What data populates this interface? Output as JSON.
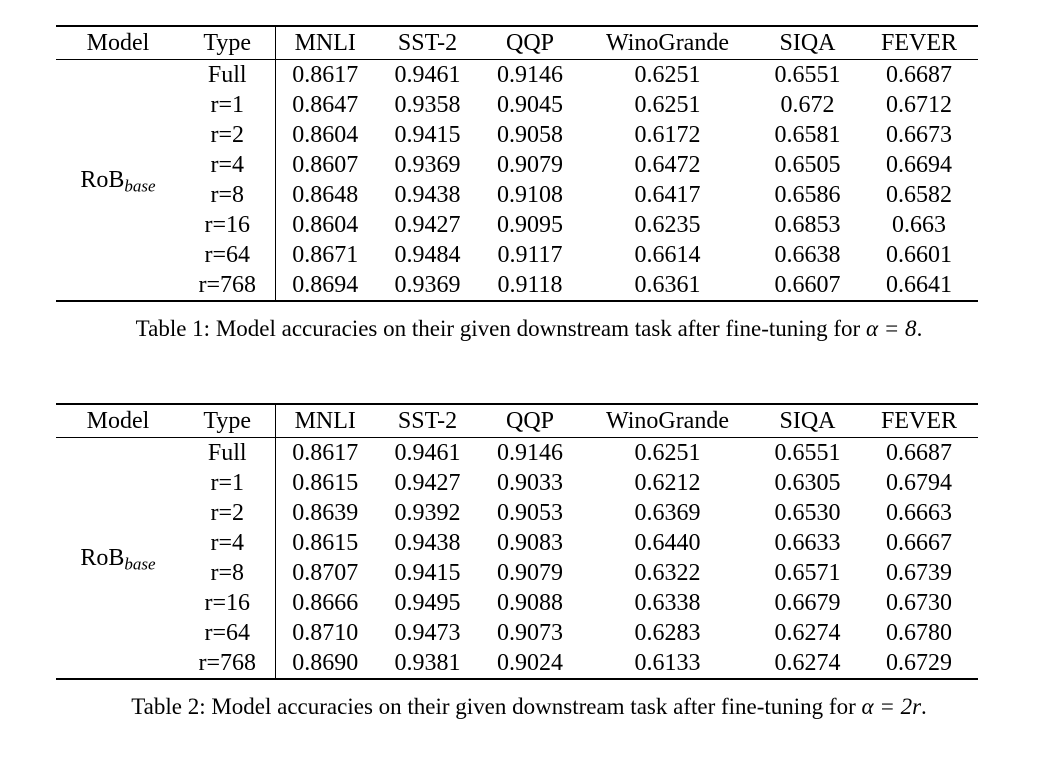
{
  "page": {
    "background_color": "#ffffff",
    "text_color": "#000000"
  },
  "tables": [
    {
      "columns": [
        "Model",
        "Type",
        "MNLI",
        "SST-2",
        "QQP",
        "WinoGrande",
        "SIQA",
        "FEVER"
      ],
      "model": {
        "main": "RoB",
        "sub": "base"
      },
      "rows": [
        {
          "type": "Full",
          "values": [
            "0.8617",
            "0.9461",
            "0.9146",
            "0.6251",
            "0.6551",
            "0.6687"
          ]
        },
        {
          "type": "r=1",
          "values": [
            "0.8647",
            "0.9358",
            "0.9045",
            "0.6251",
            "0.672",
            "0.6712"
          ]
        },
        {
          "type": "r=2",
          "values": [
            "0.8604",
            "0.9415",
            "0.9058",
            "0.6172",
            "0.6581",
            "0.6673"
          ]
        },
        {
          "type": "r=4",
          "values": [
            "0.8607",
            "0.9369",
            "0.9079",
            "0.6472",
            "0.6505",
            "0.6694"
          ]
        },
        {
          "type": "r=8",
          "values": [
            "0.8648",
            "0.9438",
            "0.9108",
            "0.6417",
            "0.6586",
            "0.6582"
          ]
        },
        {
          "type": "r=16",
          "values": [
            "0.8604",
            "0.9427",
            "0.9095",
            "0.6235",
            "0.6853",
            "0.663"
          ]
        },
        {
          "type": "r=64",
          "values": [
            "0.8671",
            "0.9484",
            "0.9117",
            "0.6614",
            "0.6638",
            "0.6601"
          ]
        },
        {
          "type": "r=768",
          "values": [
            "0.8694",
            "0.9369",
            "0.9118",
            "0.6361",
            "0.6607",
            "0.6641"
          ]
        }
      ],
      "caption": {
        "label": "Table 1:",
        "body": " Model accuracies on their given downstream task after fine-tuning for ",
        "math": "α = 8",
        "period": "."
      }
    },
    {
      "columns": [
        "Model",
        "Type",
        "MNLI",
        "SST-2",
        "QQP",
        "WinoGrande",
        "SIQA",
        "FEVER"
      ],
      "model": {
        "main": "RoB",
        "sub": "base"
      },
      "rows": [
        {
          "type": "Full",
          "values": [
            "0.8617",
            "0.9461",
            "0.9146",
            "0.6251",
            "0.6551",
            "0.6687"
          ]
        },
        {
          "type": "r=1",
          "values": [
            "0.8615",
            "0.9427",
            "0.9033",
            "0.6212",
            "0.6305",
            "0.6794"
          ]
        },
        {
          "type": "r=2",
          "values": [
            "0.8639",
            "0.9392",
            "0.9053",
            "0.6369",
            "0.6530",
            "0.6663"
          ]
        },
        {
          "type": "r=4",
          "values": [
            "0.8615",
            "0.9438",
            "0.9083",
            "0.6440",
            "0.6633",
            "0.6667"
          ]
        },
        {
          "type": "r=8",
          "values": [
            "0.8707",
            "0.9415",
            "0.9079",
            "0.6322",
            "0.6571",
            "0.6739"
          ]
        },
        {
          "type": "r=16",
          "values": [
            "0.8666",
            "0.9495",
            "0.9088",
            "0.6338",
            "0.6679",
            "0.6730"
          ]
        },
        {
          "type": "r=64",
          "values": [
            "0.8710",
            "0.9473",
            "0.9073",
            "0.6283",
            "0.6274",
            "0.6780"
          ]
        },
        {
          "type": "r=768",
          "values": [
            "0.8690",
            "0.9381",
            "0.9024",
            "0.6133",
            "0.6274",
            "0.6729"
          ]
        }
      ],
      "caption": {
        "label": "Table 2:",
        "body": " Model accuracies on their given downstream task after fine-tuning for ",
        "math": "α = 2r",
        "period": "."
      }
    }
  ]
}
